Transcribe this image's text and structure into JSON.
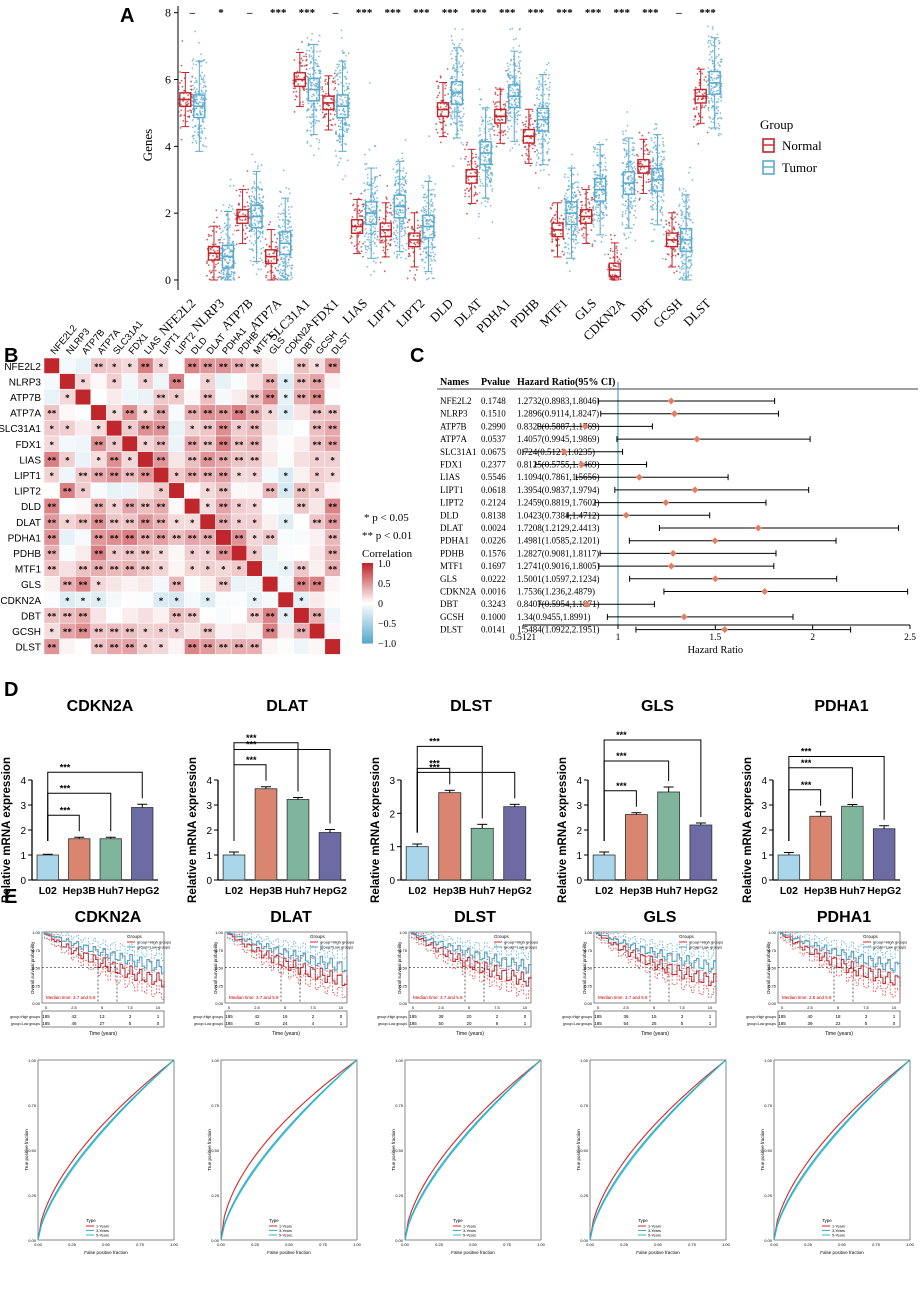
{
  "panels": {
    "a": "A",
    "b": "B",
    "c": "C",
    "d": "D",
    "e": "E"
  },
  "colors": {
    "normal": "#c0272d",
    "tumor": "#5ba9cc",
    "corr_pos": "#c0272d",
    "corr_neg": "#5ba9cc",
    "forest_point": "#e08060",
    "kmRed": "#d62728",
    "kmBlue": "#4fa6c8",
    "kmCyan": "#17becf"
  },
  "chart_data": [
    {
      "id": "boxplot",
      "type": "box",
      "title": "",
      "ylabel": "Genes",
      "ylim": [
        -0.3,
        8.2
      ],
      "yticks": [
        0,
        2,
        4,
        6,
        8
      ],
      "legend_title": "Group",
      "legend": [
        "Normal",
        "Tumor"
      ],
      "genes": [
        "NFE2L2",
        "NLRP3",
        "ATP7B",
        "ATP7A",
        "SLC31A1",
        "FDX1",
        "LIAS",
        "LIPT1",
        "LIPT2",
        "DLD",
        "DLAT",
        "PDHA1",
        "PDHB",
        "MTF1",
        "GLS",
        "CDKN2A",
        "DBT",
        "GCSH",
        "DLST"
      ],
      "significance": [
        "–",
        "*",
        "–",
        "***",
        "***",
        "–",
        "***",
        "***",
        "***",
        "***",
        "***",
        "***",
        "***",
        "***",
        "***",
        "***",
        "***",
        "–",
        "***"
      ],
      "normal_median": [
        5.4,
        0.8,
        1.9,
        0.7,
        6.0,
        5.3,
        1.6,
        1.5,
        1.2,
        5.1,
        3.1,
        4.9,
        4.3,
        1.5,
        1.9,
        0.3,
        3.4,
        1.2,
        5.5
      ],
      "tumor_median": [
        5.2,
        0.7,
        1.9,
        1.1,
        5.7,
        5.2,
        2.0,
        2.2,
        1.6,
        5.6,
        3.8,
        5.5,
        4.8,
        2.0,
        2.7,
        2.9,
        3.0,
        1.2,
        5.9
      ]
    },
    {
      "id": "correlation",
      "type": "heatmap",
      "legend_title": "Correlation",
      "scale_ticks": [
        "1.0",
        "0.5",
        "0",
        "−0.5",
        "−1.0"
      ],
      "sig_notes": [
        "* p < 0.05",
        "** p < 0.01"
      ],
      "genes": [
        "NFE2L2",
        "NLRP3",
        "ATP7B",
        "ATP7A",
        "SLC31A1",
        "FDX1",
        "LIAS",
        "LIPT1",
        "LIPT2",
        "DLD",
        "DLAT",
        "PDHA1",
        "PDHB",
        "MTF1",
        "GLS",
        "CDKN2A",
        "DBT",
        "GCSH",
        "DLST"
      ]
    },
    {
      "id": "forest",
      "type": "forest",
      "headers": [
        "Names",
        "Pvalue",
        "Hazard Ratio(95% CI)"
      ],
      "xlabel": "Hazard Ratio",
      "xticks": [
        "0.5121",
        "1",
        "1.5",
        "2",
        "2.5"
      ],
      "xlim": [
        0.5121,
        2.5
      ],
      "rows": [
        {
          "name": "NFE2L2",
          "p": "0.1748",
          "ci": "1.2732(0.8983,1.8046)",
          "hr": 1.2732,
          "lo": 0.8983,
          "hi": 1.8046
        },
        {
          "name": "NLRP3",
          "p": "0.1510",
          "ci": "1.2896(0.9114,1.8247)",
          "hr": 1.2896,
          "lo": 0.9114,
          "hi": 1.8247
        },
        {
          "name": "ATP7B",
          "p": "0.2990",
          "ci": "0.8323(0.5887,1.1769)",
          "hr": 0.8323,
          "lo": 0.5887,
          "hi": 1.1769
        },
        {
          "name": "ATP7A",
          "p": "0.0537",
          "ci": "1.4057(0.9945,1.9869)",
          "hr": 1.4057,
          "lo": 0.9945,
          "hi": 1.9869
        },
        {
          "name": "SLC31A1",
          "p": "0.0675",
          "ci": "0.724(0.5121,1.0235)",
          "hr": 0.724,
          "lo": 0.5121,
          "hi": 1.0235
        },
        {
          "name": "FDX1",
          "p": "0.2377",
          "ci": "0.8125(0.5755,1.1469)",
          "hr": 0.8125,
          "lo": 0.5755,
          "hi": 1.1469
        },
        {
          "name": "LIAS",
          "p": "0.5546",
          "ci": "1.1094(0.7861,1.5656)",
          "hr": 1.1094,
          "lo": 0.7861,
          "hi": 1.5656
        },
        {
          "name": "LIPT1",
          "p": "0.0618",
          "ci": "1.3954(0.9837,1.9794)",
          "hr": 1.3954,
          "lo": 0.9837,
          "hi": 1.9794
        },
        {
          "name": "LIPT2",
          "p": "0.2124",
          "ci": "1.2459(0.8819,1.7602)",
          "hr": 1.2459,
          "lo": 0.8819,
          "hi": 1.7602
        },
        {
          "name": "DLD",
          "p": "0.8138",
          "ci": "1.0423(0.7384,1.4712)",
          "hr": 1.0423,
          "lo": 0.7384,
          "hi": 1.4712
        },
        {
          "name": "DLAT",
          "p": "0.0024",
          "ci": "1.7208(1.2129,2.4413)",
          "hr": 1.7208,
          "lo": 1.2129,
          "hi": 2.4413
        },
        {
          "name": "PDHA1",
          "p": "0.0226",
          "ci": "1.4981(1.0585,2.1201)",
          "hr": 1.4981,
          "lo": 1.0585,
          "hi": 2.1201
        },
        {
          "name": "PDHB",
          "p": "0.1576",
          "ci": "1.2827(0.9081,1.8117)",
          "hr": 1.2827,
          "lo": 0.9081,
          "hi": 1.8117
        },
        {
          "name": "MTF1",
          "p": "0.1697",
          "ci": "1.2741(0.9016,1.8005)",
          "hr": 1.2741,
          "lo": 0.9016,
          "hi": 1.8005
        },
        {
          "name": "GLS",
          "p": "0.0222",
          "ci": "1.5001(1.0597,2.1234)",
          "hr": 1.5001,
          "lo": 1.0597,
          "hi": 2.1234
        },
        {
          "name": "CDKN2A",
          "p": "0.0016",
          "ci": "1.7536(1.236,2.4879)",
          "hr": 1.7536,
          "lo": 1.236,
          "hi": 2.4879
        },
        {
          "name": "DBT",
          "p": "0.3243",
          "ci": "0.8407(0.5954,1.1871)",
          "hr": 0.8407,
          "lo": 0.5954,
          "hi": 1.1871
        },
        {
          "name": "GCSH",
          "p": "0.1000",
          "ci": "1.34(0.9455,1.8991)",
          "hr": 1.34,
          "lo": 0.9455,
          "hi": 1.8991
        },
        {
          "name": "DLST",
          "p": "0.0141",
          "ci": "1.5484(1.0922,2.1951)",
          "hr": 1.5484,
          "lo": 1.0922,
          "hi": 2.1951
        }
      ]
    },
    {
      "id": "qpcr",
      "type": "bar",
      "ylabel": "Relative mRNA expression",
      "categories": [
        "L02",
        "Hep3B",
        "Huh7",
        "HepG2"
      ],
      "bar_colors": [
        "#a9d6ea",
        "#d9856f",
        "#7fb59c",
        "#6d6ba3"
      ],
      "sig": "***",
      "charts": [
        {
          "title": "CDKN2A",
          "values": [
            1.0,
            1.65,
            1.65,
            2.9
          ],
          "errors": [
            0.03,
            0.06,
            0.06,
            0.13
          ],
          "ylim": [
            0,
            4
          ],
          "yticks": [
            0,
            1,
            2,
            3,
            4
          ]
        },
        {
          "title": "DLAT",
          "values": [
            1.0,
            3.65,
            3.22,
            1.9
          ],
          "errors": [
            0.12,
            0.08,
            0.08,
            0.12
          ],
          "ylim": [
            0,
            4
          ],
          "yticks": [
            0,
            1,
            2,
            3,
            4
          ]
        },
        {
          "title": "DLST",
          "values": [
            1.0,
            2.62,
            1.55,
            2.2
          ],
          "errors": [
            0.08,
            0.07,
            0.12,
            0.07
          ],
          "ylim": [
            0,
            3
          ],
          "yticks": [
            0,
            1,
            2,
            3
          ]
        },
        {
          "title": "GLS",
          "values": [
            1.0,
            2.62,
            3.52,
            2.2
          ],
          "errors": [
            0.12,
            0.07,
            0.2,
            0.08
          ],
          "ylim": [
            0,
            4
          ],
          "yticks": [
            0,
            1,
            2,
            3,
            4
          ]
        },
        {
          "title": "PDHA1",
          "values": [
            1.0,
            2.55,
            2.95,
            2.05
          ],
          "errors": [
            0.1,
            0.18,
            0.07,
            0.12
          ],
          "ylim": [
            0,
            4
          ],
          "yticks": [
            0,
            1,
            2,
            3,
            4
          ]
        }
      ]
    },
    {
      "id": "survival_roc",
      "type": "line",
      "titles": [
        "CDKN2A",
        "DLAT",
        "DLST",
        "GLS",
        "PDHA1"
      ],
      "km_ylabel": "Overall survival probability",
      "km_xlabel": "Time (years)",
      "km_xticks": [
        "0",
        "2.5",
        "5",
        "7.5",
        "10"
      ],
      "km_yticks": [
        "0.00",
        "0.25",
        "0.50",
        "0.75",
        "1.00"
      ],
      "risk_rows": [
        "group=High groups",
        "group=Low groups"
      ],
      "risk_counts": [
        [
          [
            "185",
            "42",
            "13",
            "3",
            "1"
          ],
          [
            "185",
            "46",
            "27",
            "5",
            "0"
          ]
        ],
        [
          [
            "185",
            "42",
            "16",
            "2",
            "0"
          ],
          [
            "185",
            "43",
            "24",
            "4",
            "1"
          ]
        ],
        [
          [
            "185",
            "38",
            "20",
            "2",
            "0"
          ],
          [
            "185",
            "50",
            "20",
            "6",
            "1"
          ]
        ],
        [
          [
            "185",
            "36",
            "15",
            "3",
            "1"
          ],
          [
            "185",
            "54",
            "25",
            "5",
            "1"
          ]
        ],
        [
          [
            "185",
            "40",
            "18",
            "3",
            "1"
          ],
          [
            "185",
            "39",
            "22",
            "5",
            "0"
          ]
        ]
      ],
      "median_notes": [
        "Median time: 3.7 and 5.8",
        "Median time: 3.7 and 5.8",
        "Median time: 3.7 and 5.8",
        "Median time: 3.7 and 5.8",
        "Median time: 2.8 and 5.8"
      ],
      "legend_title": "Groups",
      "legend_items": [
        "group=High groups",
        "group=Low groups"
      ],
      "roc_ylabel": "True positive fraction",
      "roc_xlabel": "False positive fraction",
      "roc_ticks": [
        "0.00",
        "0.25",
        "0.50",
        "0.75",
        "1.00"
      ],
      "roc_type": "Type",
      "roc_legends": [
        "1-Years",
        "3-Years",
        "5-Years"
      ]
    }
  ]
}
